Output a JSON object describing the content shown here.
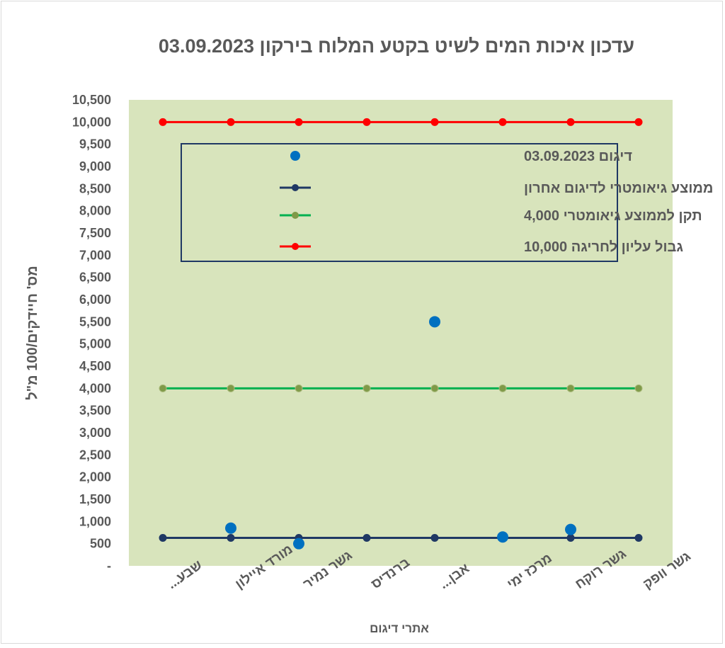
{
  "chart_data": {
    "type": "line",
    "title": "עדכון איכות המים לשיט בקטע המלוח בירקון 03.09.2023",
    "xlabel": "אתרי דיגום",
    "ylabel": "מס' חיידקים/100 מ\"ל",
    "ylim": [
      0,
      10500
    ],
    "yticks": [
      0,
      500,
      1000,
      1500,
      2000,
      2500,
      3000,
      3500,
      4000,
      4500,
      5000,
      5500,
      6000,
      6500,
      7000,
      7500,
      8000,
      8500,
      9000,
      9500,
      10000,
      10500
    ],
    "ytick_labels": [
      "-",
      "500",
      "1,000",
      "1,500",
      "2,000",
      "2,500",
      "3,000",
      "3,500",
      "4,000",
      "4,500",
      "5,000",
      "5,500",
      "6,000",
      "6,500",
      "7,000",
      "7,500",
      "8,000",
      "8,500",
      "9,000",
      "9,500",
      "10,000",
      "10,500"
    ],
    "categories": [
      "שבע...",
      "מורד איילון",
      "גשר נמיר",
      "ברנדיס",
      "אבן...",
      "מרכז ימי",
      "גשר רוקח",
      "גשר וופק"
    ],
    "grid": false,
    "plot_background": "#d8e4bc",
    "legend_position": "top-center",
    "series": [
      {
        "name": "דיגום 03.09.2023",
        "style": "markers",
        "color": "#0070c0",
        "values": [
          null,
          850,
          500,
          null,
          5500,
          650,
          820,
          null
        ]
      },
      {
        "name": "ממוצע  גיאומטרי לדיגום אחרון",
        "style": "line-markers",
        "color": "#1f3864",
        "values": [
          630,
          630,
          630,
          630,
          630,
          630,
          630,
          630
        ]
      },
      {
        "name": "תקן לממוצע גיאומטרי 4,000",
        "style": "line-markers",
        "color": "#00b050",
        "marker_color": "#7f9a48",
        "values": [
          4000,
          4000,
          4000,
          4000,
          4000,
          4000,
          4000,
          4000
        ]
      },
      {
        "name": "גבול עליון לחריגה 10,000",
        "style": "line-markers",
        "color": "#ff0000",
        "values": [
          10000,
          10000,
          10000,
          10000,
          10000,
          10000,
          10000,
          10000
        ]
      }
    ]
  }
}
